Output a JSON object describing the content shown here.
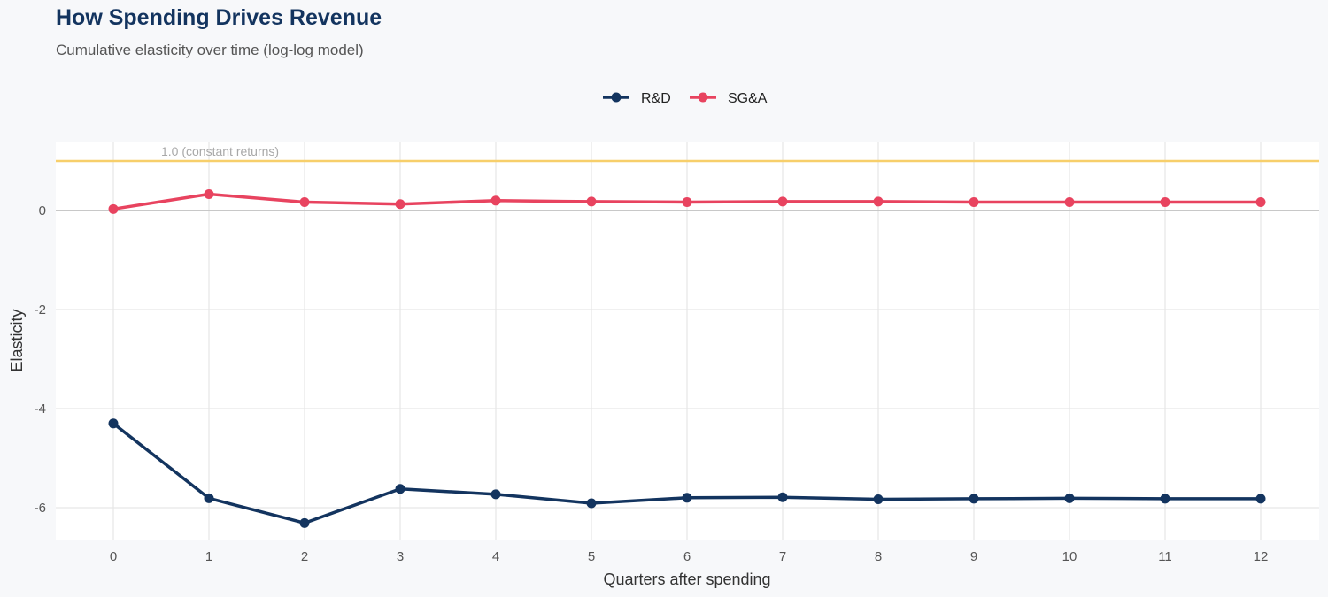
{
  "header": {
    "title": "How Spending Drives Revenue",
    "subtitle": "Cumulative elasticity over time (log-log model)"
  },
  "chart_data": {
    "type": "line",
    "title": "How Spending Drives Revenue",
    "subtitle": "Cumulative elasticity over time (log-log model)",
    "xlabel": "Quarters after spending",
    "ylabel": "Elasticity",
    "x": [
      0,
      1,
      2,
      3,
      4,
      5,
      6,
      7,
      8,
      9,
      10,
      11,
      12
    ],
    "xticks": [
      0,
      1,
      2,
      3,
      4,
      5,
      6,
      7,
      8,
      9,
      10,
      11,
      12
    ],
    "yticks": [
      0,
      -2,
      -4,
      -6
    ],
    "ylim": [
      -6.65,
      1.4
    ],
    "xlim": [
      -0.6,
      12.6
    ],
    "grid": true,
    "legend_position": "top",
    "series": [
      {
        "name": "R&D",
        "color": "#13345f",
        "values": [
          -4.3,
          -5.81,
          -6.31,
          -5.62,
          -5.73,
          -5.91,
          -5.8,
          -5.79,
          -5.83,
          -5.82,
          -5.81,
          -5.82,
          -5.82
        ]
      },
      {
        "name": "SG&A",
        "color": "#e8435f",
        "values": [
          0.03,
          0.33,
          0.17,
          0.13,
          0.2,
          0.18,
          0.17,
          0.18,
          0.18,
          0.17,
          0.17,
          0.17,
          0.17
        ]
      }
    ],
    "reference_line": {
      "y": 1.0,
      "label": "1.0 (constant returns)",
      "color": "#f7cf6b"
    },
    "zero_line": {
      "y": 0,
      "color": "#c8c8c8"
    }
  }
}
